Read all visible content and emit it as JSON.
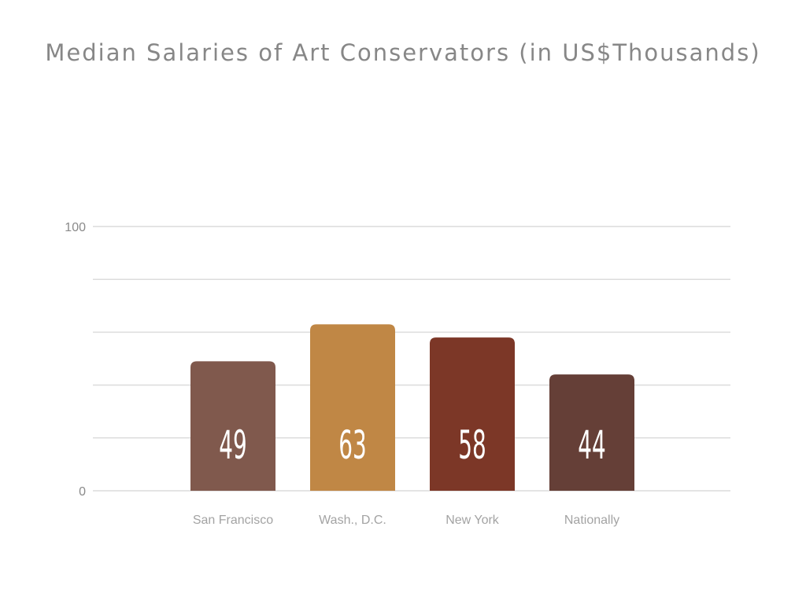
{
  "chart_data": {
    "type": "bar",
    "title": "Median Salaries of Art Conservators (in US$Thousands)",
    "categories": [
      "San Francisco",
      "Wash., D.C.",
      "New York",
      "Nationally"
    ],
    "values": [
      49,
      63,
      58,
      44
    ],
    "value_labels": [
      "49",
      "63",
      "58",
      "44"
    ],
    "colors": [
      "#80594d",
      "#c08745",
      "#7c3727",
      "#653f37"
    ],
    "ylim": [
      0,
      100
    ],
    "yticks": [
      0,
      100
    ],
    "ytick_labels": [
      "0",
      "100"
    ],
    "grid_step": 20,
    "grid": true,
    "xlabel": "",
    "ylabel": ""
  }
}
